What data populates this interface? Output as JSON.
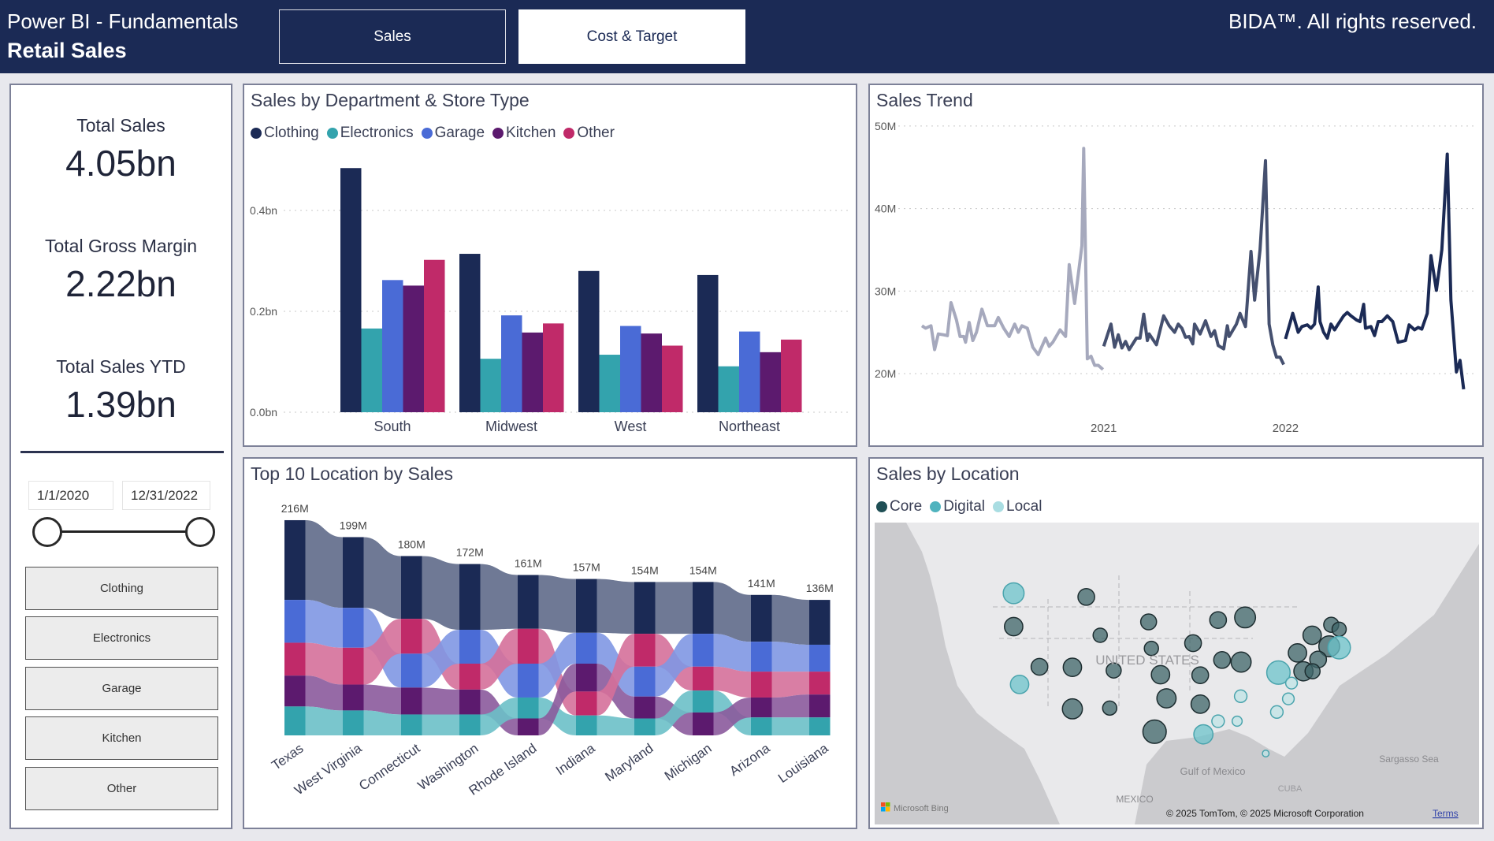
{
  "header": {
    "app_title": "Power BI - Fundamentals",
    "report_title": "Retail Sales",
    "tabs": [
      {
        "label": "Sales",
        "active": true
      },
      {
        "label": "Cost & Target",
        "active": false
      }
    ],
    "copyright": "BIDA™. All rights reserved."
  },
  "kpis": [
    {
      "label": "Total Sales",
      "value": "4.05bn"
    },
    {
      "label": "Total Gross Margin",
      "value": "2.22bn"
    },
    {
      "label": "Total Sales YTD",
      "value": "1.39bn"
    }
  ],
  "date_slicer": {
    "start": "1/1/2020",
    "end": "12/31/2022"
  },
  "department_buttons": [
    "Clothing",
    "Electronics",
    "Garage",
    "Kitchen",
    "Other"
  ],
  "colors": {
    "Clothing": "#1b2a55",
    "Electronics": "#33a3ad",
    "Garage": "#4a6bd6",
    "Kitchen": "#5c1a6e",
    "Other": "#c02a69",
    "header": "#1b2a55"
  },
  "chart_data": [
    {
      "type": "bar",
      "title": "Sales by Department & Store Type",
      "legend": [
        "Clothing",
        "Electronics",
        "Garage",
        "Kitchen",
        "Other"
      ],
      "legend_position": "top-left",
      "categories": [
        "South",
        "Midwest",
        "West",
        "Northeast"
      ],
      "yticks": [
        "0.0bn",
        "0.2bn",
        "0.4bn"
      ],
      "ylim": [
        0,
        0.5
      ],
      "grid": true,
      "series": [
        {
          "name": "Clothing",
          "values": [
            0.484,
            0.314,
            0.28,
            0.272
          ]
        },
        {
          "name": "Electronics",
          "values": [
            0.166,
            0.106,
            0.114,
            0.091
          ]
        },
        {
          "name": "Garage",
          "values": [
            0.262,
            0.192,
            0.171,
            0.16
          ]
        },
        {
          "name": "Kitchen",
          "values": [
            0.251,
            0.158,
            0.156,
            0.119
          ]
        },
        {
          "name": "Other",
          "values": [
            0.302,
            0.176,
            0.132,
            0.144
          ]
        }
      ]
    },
    {
      "type": "line",
      "title": "Sales Trend",
      "yticks": [
        "20M",
        "30M",
        "40M",
        "50M"
      ],
      "ylim": [
        18,
        50
      ],
      "xticks": [
        "2021",
        "2022"
      ],
      "grid": true,
      "series": [
        {
          "color": "#a6a9bd",
          "x": [
            2020.0,
            2020.02,
            2020.05,
            2020.07,
            2020.09,
            2020.12,
            2020.14,
            2020.16,
            2020.19,
            2020.21,
            2020.23,
            2020.24,
            2020.26,
            2020.28,
            2020.3,
            2020.33,
            2020.36,
            2020.4,
            2020.42,
            2020.45,
            2020.48,
            2020.51,
            2020.53,
            2020.55,
            2020.58,
            2020.61,
            2020.64,
            2020.68,
            2020.7,
            2020.72,
            2020.76,
            2020.79,
            2020.81,
            2020.84,
            2020.88,
            2020.89,
            2020.91,
            2020.93,
            2020.95,
            2020.97,
            2020.996
          ],
          "y": [
            25.8,
            25.5,
            25.8,
            22.9,
            24.8,
            24.7,
            24.6,
            28.6,
            26.5,
            24.5,
            24.5,
            23.8,
            26.2,
            24.0,
            25.0,
            27.8,
            25.8,
            25.8,
            26.8,
            25.5,
            24.5,
            26.0,
            25.0,
            25.8,
            25.5,
            23.2,
            22.3,
            24.3,
            23.3,
            23.8,
            25.3,
            24.5,
            33.2,
            28.5,
            35.5,
            47.3,
            21.8,
            22.1,
            21.0,
            21.0,
            20.5
          ]
        },
        {
          "color": "#45506f",
          "x": [
            2021.0,
            2021.04,
            2021.06,
            2021.08,
            2021.1,
            2021.12,
            2021.14,
            2021.18,
            2021.2,
            2021.22,
            2021.24,
            2021.25,
            2021.29,
            2021.33,
            2021.36,
            2021.39,
            2021.41,
            2021.43,
            2021.45,
            2021.47,
            2021.49,
            2021.5,
            2021.53,
            2021.56,
            2021.59,
            2021.61,
            2021.63,
            2021.66,
            2021.68,
            2021.69,
            2021.73,
            2021.75,
            2021.78,
            2021.81,
            2021.83,
            2021.86,
            2021.89,
            2021.91,
            2021.93,
            2021.95,
            2021.97,
            2021.99
          ],
          "y": [
            23.3,
            26.0,
            23.2,
            24.7,
            23.1,
            23.9,
            22.9,
            24.3,
            24.3,
            27.2,
            24.0,
            24.8,
            23.5,
            27.0,
            25.8,
            25.0,
            26.0,
            25.5,
            24.4,
            24.5,
            23.6,
            26.0,
            24.8,
            26.4,
            24.5,
            25.2,
            23.4,
            23.0,
            25.8,
            24.5,
            26.0,
            27.3,
            25.7,
            34.8,
            28.9,
            35.0,
            45.8,
            26.0,
            23.5,
            22.0,
            22.0,
            21.1
          ]
        },
        {
          "color": "#1b2a55",
          "x": [
            2022.0,
            2022.03,
            2022.04,
            2022.07,
            2022.09,
            2022.12,
            2022.14,
            2022.16,
            2022.18,
            2022.19,
            2022.21,
            2022.23,
            2022.25,
            2022.27,
            2022.29,
            2022.32,
            2022.34,
            2022.36,
            2022.39,
            2022.41,
            2022.43,
            2022.44,
            2022.47,
            2022.49,
            2022.51,
            2022.53,
            2022.56,
            2022.59,
            2022.62,
            2022.66,
            2022.68,
            2022.71,
            2022.73,
            2022.75,
            2022.78,
            2022.8,
            2022.83,
            2022.86,
            2022.89,
            2022.91,
            2022.94,
            2022.96,
            2022.98
          ],
          "y": [
            24.2,
            26.5,
            27.3,
            25.0,
            25.7,
            25.9,
            25.5,
            26.0,
            30.5,
            26.3,
            25.0,
            24.3,
            26.0,
            25.3,
            26.0,
            27.0,
            27.4,
            27.0,
            26.5,
            26.3,
            28.4,
            25.5,
            25.7,
            24.6,
            26.3,
            26.3,
            27.0,
            26.3,
            23.8,
            24.0,
            25.9,
            25.3,
            25.6,
            25.4,
            27.3,
            34.3,
            30.1,
            35.0,
            46.6,
            28.9,
            20.2,
            21.6,
            18.1
          ]
        }
      ]
    },
    {
      "type": "ribbon",
      "title": "Top 10 Location by Sales",
      "categories": [
        "Texas",
        "West Virginia",
        "Connecticut",
        "Washington",
        "Rhode Island",
        "Indiana",
        "Maryland",
        "Michigan",
        "Arizona",
        "Louisiana"
      ],
      "totals": [
        "216M",
        "199M",
        "180M",
        "172M",
        "161M",
        "157M",
        "154M",
        "154M",
        "141M",
        "136M"
      ],
      "segments": [
        [
          [
            "Clothing",
            80
          ],
          [
            "Garage",
            43
          ],
          [
            "Other",
            33
          ],
          [
            "Kitchen",
            31
          ],
          [
            "Electronics",
            29
          ]
        ],
        [
          [
            "Clothing",
            71
          ],
          [
            "Garage",
            40
          ],
          [
            "Other",
            37
          ],
          [
            "Kitchen",
            26
          ],
          [
            "Electronics",
            25
          ]
        ],
        [
          [
            "Clothing",
            63
          ],
          [
            "Other",
            35
          ],
          [
            "Garage",
            34
          ],
          [
            "Kitchen",
            27
          ],
          [
            "Electronics",
            21
          ]
        ],
        [
          [
            "Clothing",
            66
          ],
          [
            "Garage",
            34
          ],
          [
            "Other",
            26
          ],
          [
            "Kitchen",
            25
          ],
          [
            "Electronics",
            21
          ]
        ],
        [
          [
            "Clothing",
            54
          ],
          [
            "Other",
            35
          ],
          [
            "Garage",
            34
          ],
          [
            "Electronics",
            21
          ],
          [
            "Kitchen",
            17
          ]
        ],
        [
          [
            "Clothing",
            54
          ],
          [
            "Garage",
            31
          ],
          [
            "Kitchen",
            28
          ],
          [
            "Other",
            24
          ],
          [
            "Electronics",
            20
          ]
        ],
        [
          [
            "Clothing",
            52
          ],
          [
            "Other",
            33
          ],
          [
            "Garage",
            30
          ],
          [
            "Kitchen",
            22
          ],
          [
            "Electronics",
            17
          ]
        ],
        [
          [
            "Clothing",
            52
          ],
          [
            "Garage",
            33
          ],
          [
            "Other",
            24
          ],
          [
            "Electronics",
            22
          ],
          [
            "Kitchen",
            23
          ]
        ],
        [
          [
            "Clothing",
            47
          ],
          [
            "Garage",
            30
          ],
          [
            "Other",
            26
          ],
          [
            "Kitchen",
            20
          ],
          [
            "Electronics",
            18
          ]
        ],
        [
          [
            "Clothing",
            45
          ],
          [
            "Garage",
            27
          ],
          [
            "Other",
            23
          ],
          [
            "Kitchen",
            23
          ],
          [
            "Electronics",
            18
          ]
        ]
      ]
    }
  ],
  "map": {
    "title": "Sales by Location",
    "legend": [
      "Core",
      "Digital",
      "Local"
    ],
    "legend_colors": {
      "Core": "#1f4f55",
      "Digital": "#4fb3be",
      "Local": "#a9dde2"
    },
    "labels": {
      "country": "UNITED STATES",
      "gulf": "Gulf of Mexico",
      "mexico": "MEXICO",
      "sea": "Sargasso Sea",
      "cuba": "CUBA"
    },
    "bing": "Microsoft Bing",
    "attribution": "© 2025 TomTom, © 2025 Microsoft Corporation",
    "terms": "Terms"
  }
}
